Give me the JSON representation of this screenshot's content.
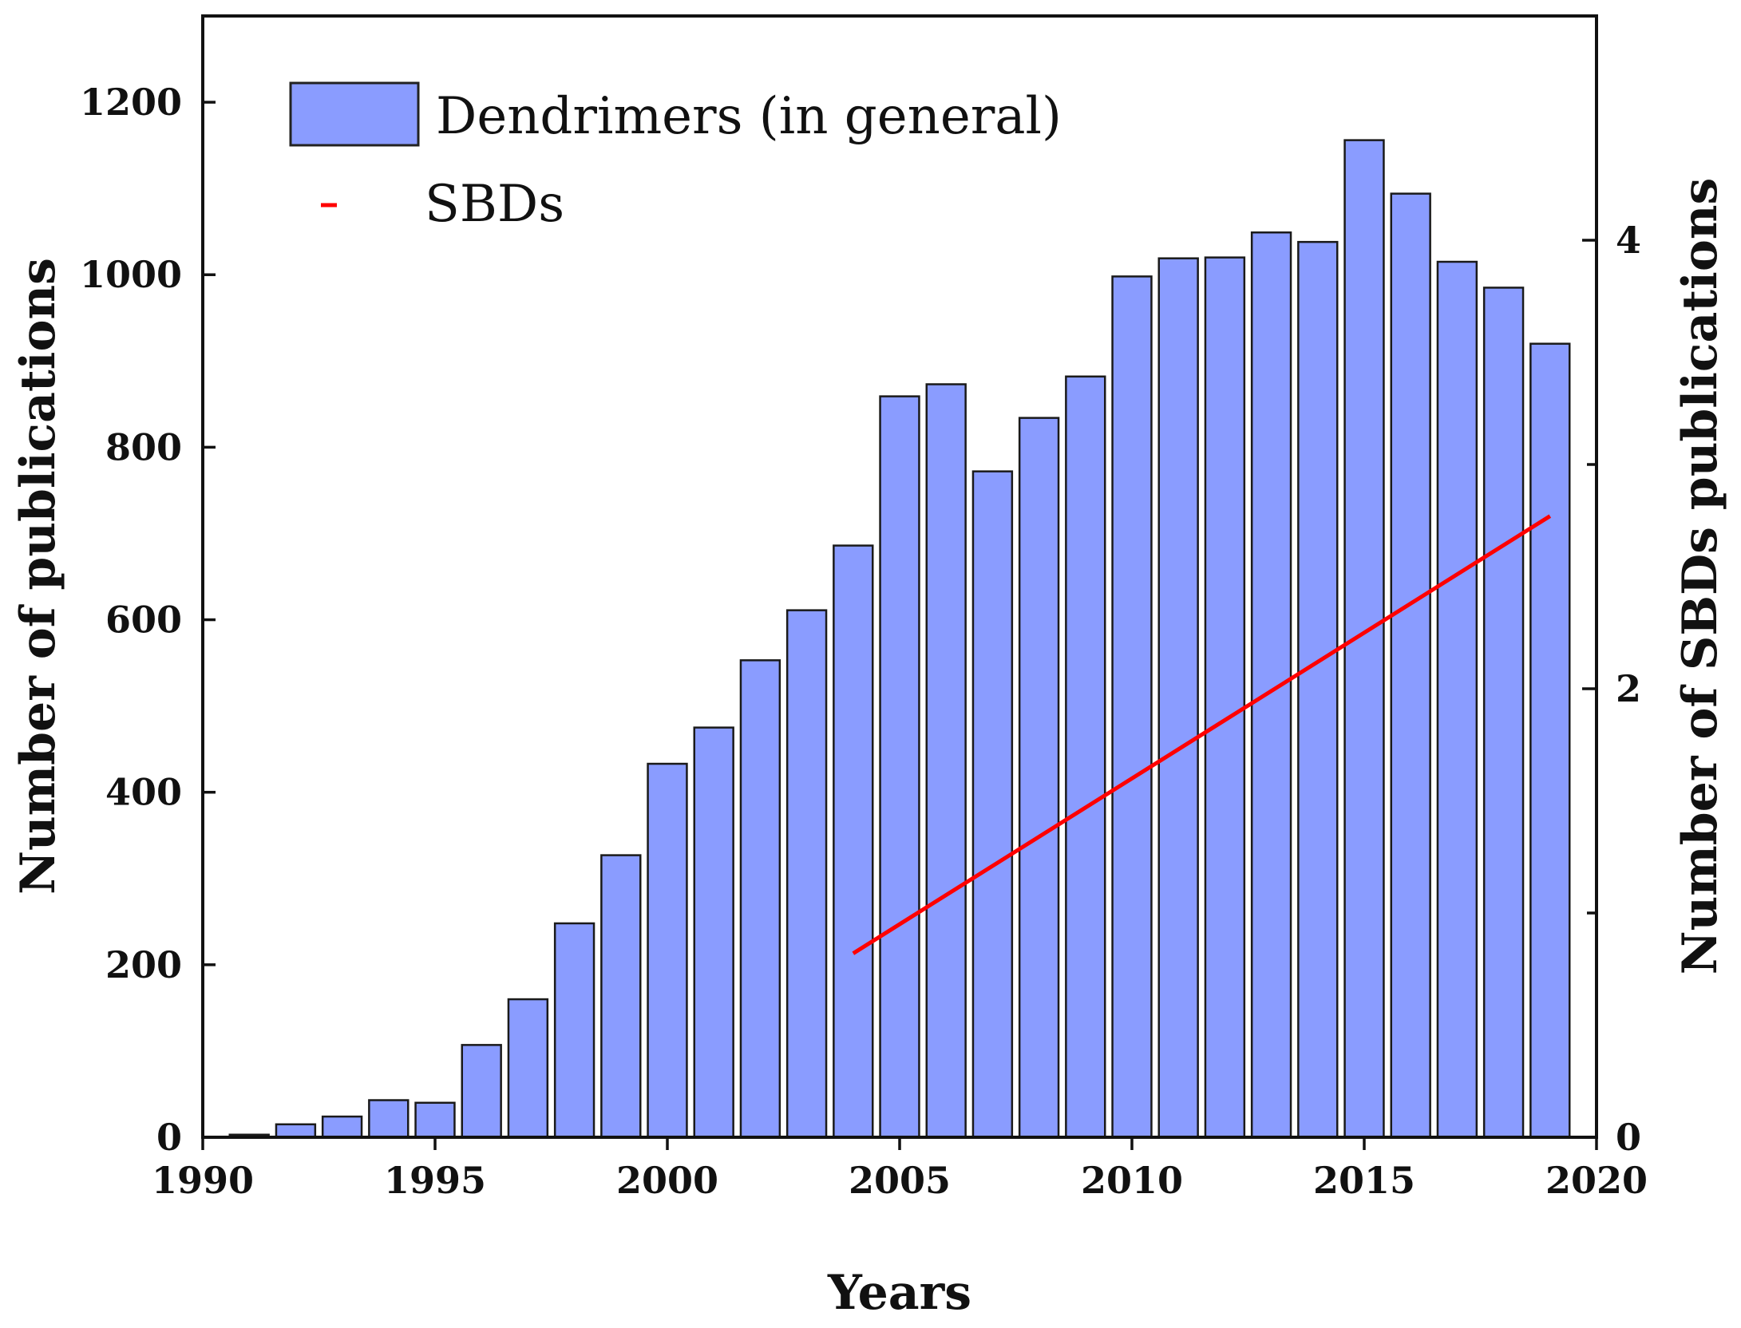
{
  "chart_data": {
    "type": "bar",
    "title": "",
    "xlabel": "Years",
    "ylabel": "Number of publications",
    "ylabel_right": "Number of SBDs publications",
    "xlim": [
      1990,
      2020
    ],
    "ylim": [
      0,
      1300
    ],
    "ylim_right": [
      0,
      5
    ],
    "x_ticks": [
      1990,
      1995,
      2000,
      2005,
      2010,
      2015,
      2020
    ],
    "y_ticks": [
      0,
      200,
      400,
      600,
      800,
      1000,
      1200
    ],
    "y_ticks_right": [
      0,
      2,
      4
    ],
    "y_minor_ticks_right": [
      1,
      3
    ],
    "grid": false,
    "legend_position": "top-left",
    "bar_color": "#8a9cff",
    "line_color": "#ff0000",
    "series": [
      {
        "name": "Dendrimers (in general)",
        "type": "bar",
        "axis": "left",
        "x": [
          1991,
          1992,
          1993,
          1994,
          1995,
          1996,
          1997,
          1998,
          1999,
          2000,
          2001,
          2002,
          2003,
          2004,
          2005,
          2006,
          2007,
          2008,
          2009,
          2010,
          2011,
          2012,
          2013,
          2014,
          2015,
          2016,
          2017,
          2018,
          2019
        ],
        "values": [
          3,
          15,
          24,
          43,
          40,
          107,
          160,
          248,
          327,
          433,
          475,
          553,
          611,
          686,
          859,
          873,
          772,
          834,
          882,
          998,
          1019,
          1020,
          1049,
          1038,
          1156,
          1094,
          1015,
          985,
          920
        ]
      },
      {
        "name": "SBDs",
        "type": "line",
        "axis": "right",
        "x": [
          2004,
          2019
        ],
        "values": [
          0.82,
          2.77
        ]
      }
    ]
  }
}
